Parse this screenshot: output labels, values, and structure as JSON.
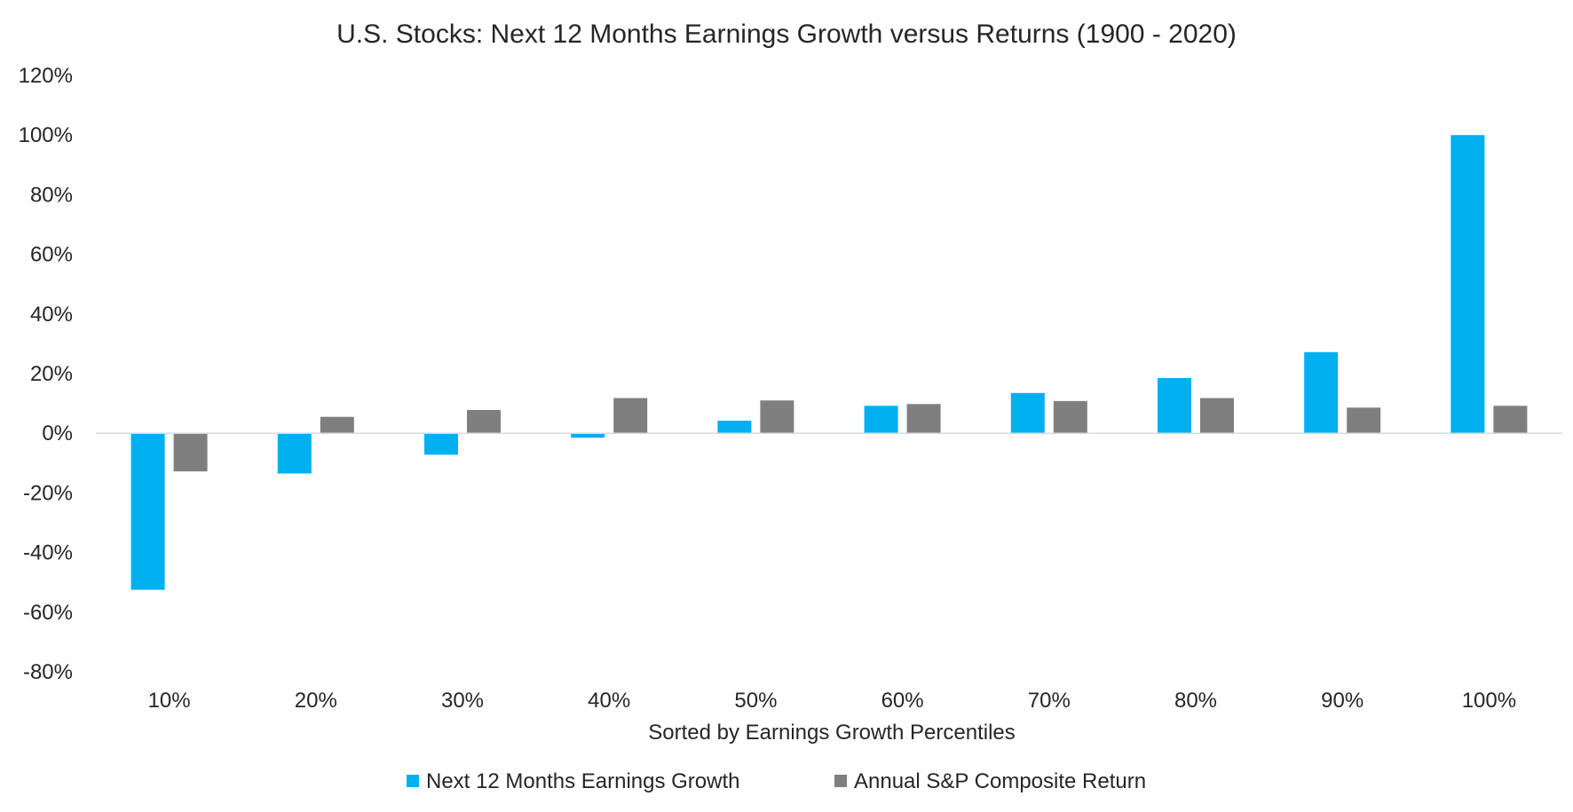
{
  "chart_data": {
    "type": "bar",
    "title": "U.S. Stocks: Next 12 Months Earnings Growth versus Returns (1900 - 2020)",
    "xlabel": "Sorted by Earnings Growth Percentiles",
    "ylabel": "",
    "categories": [
      "10%",
      "20%",
      "30%",
      "40%",
      "50%",
      "60%",
      "70%",
      "80%",
      "90%",
      "100%"
    ],
    "series": [
      {
        "name": "Next 12 Months Earnings Growth",
        "color": "#00b0f0",
        "values": [
          -52.5,
          -13.5,
          -7.2,
          -1.5,
          4.2,
          9.2,
          13.5,
          18.5,
          27.2,
          100.0
        ]
      },
      {
        "name": "Annual S&P Composite Return",
        "color": "#7f7f7f",
        "values": [
          -12.8,
          5.5,
          7.8,
          11.8,
          11.0,
          9.8,
          10.8,
          11.8,
          8.6,
          9.2
        ]
      }
    ],
    "ylim": [
      -80,
      120
    ],
    "yticks": [
      "120%",
      "100%",
      "80%",
      "60%",
      "40%",
      "20%",
      "0%",
      "-20%",
      "-40%",
      "-60%",
      "-80%"
    ],
    "grid": false,
    "legend_position": "bottom"
  }
}
